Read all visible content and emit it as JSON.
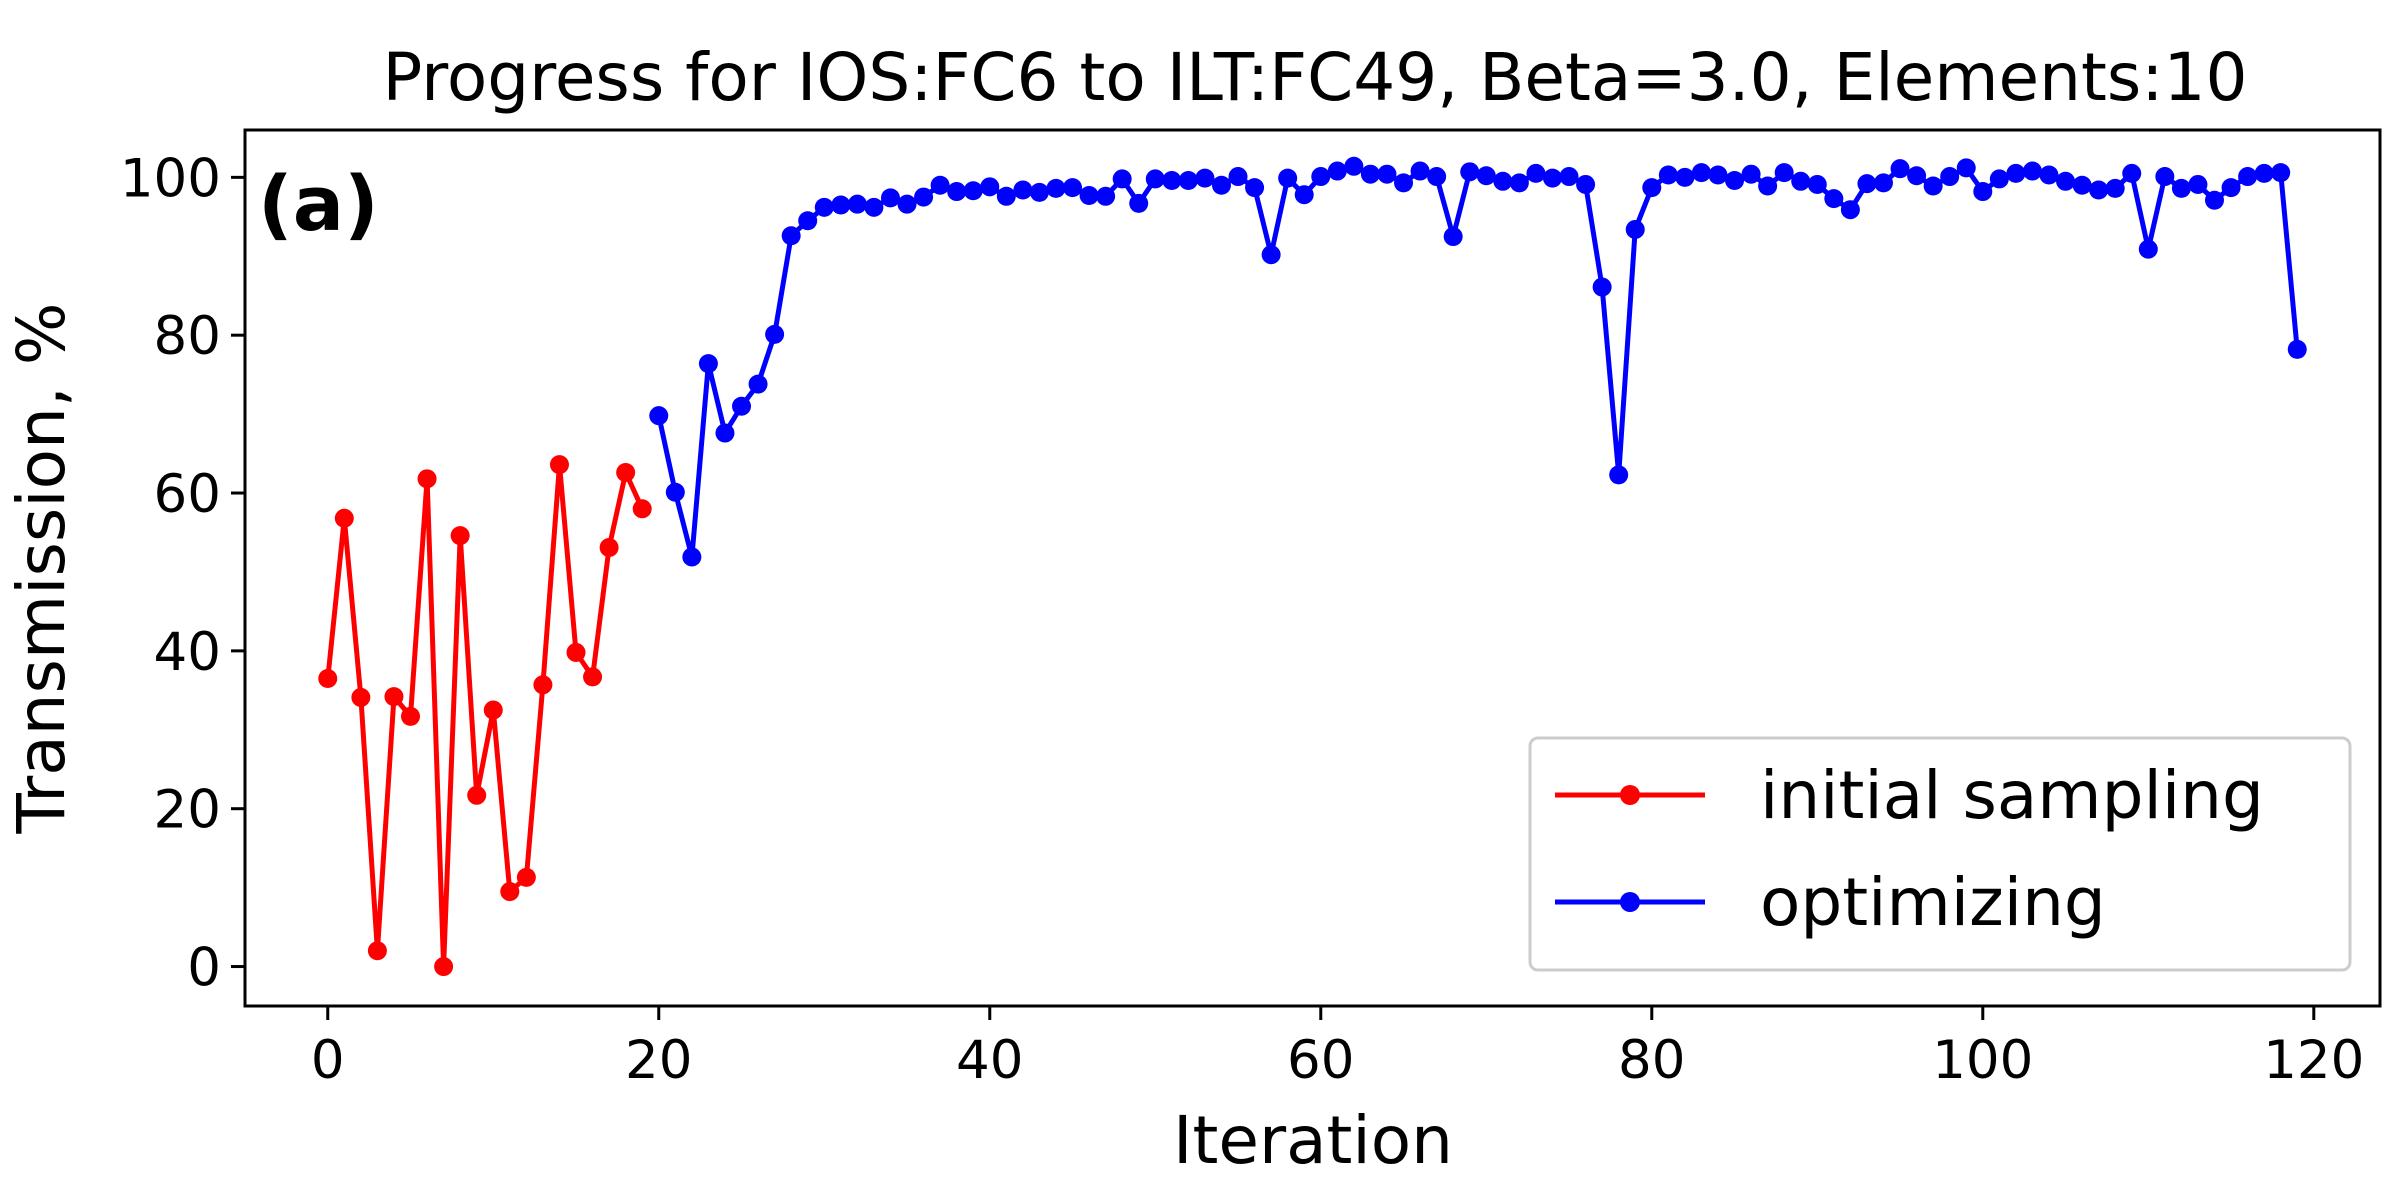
{
  "chart_data": {
    "type": "line",
    "title": "Progress for IOS:FC6 to ILT:FC49, Beta=3.0, Elements:10",
    "panel_label": "(a)",
    "xlabel": "Iteration",
    "ylabel": "Transmission, %",
    "xlim": [
      -5,
      124
    ],
    "ylim": [
      -5,
      106
    ],
    "xticks": [
      0,
      20,
      40,
      60,
      80,
      100,
      120
    ],
    "yticks": [
      0,
      20,
      40,
      60,
      80,
      100
    ],
    "grid": false,
    "legend_position": "lower-right",
    "series": [
      {
        "name": "initial sampling",
        "color": "#ff0000",
        "x": [
          0,
          1,
          2,
          3,
          4,
          5,
          6,
          7,
          8,
          9,
          10,
          11,
          12,
          13,
          14,
          15,
          16,
          17,
          18,
          19
        ],
        "y": [
          36.5,
          56.8,
          34.1,
          2.0,
          34.2,
          31.7,
          61.8,
          0.0,
          54.6,
          21.7,
          32.5,
          9.5,
          11.3,
          35.7,
          63.6,
          39.8,
          36.7,
          53.1,
          62.6,
          58.0
        ]
      },
      {
        "name": "optimizing",
        "color": "#0000ff",
        "x": [
          20,
          21,
          22,
          23,
          24,
          25,
          26,
          27,
          28,
          29,
          30,
          31,
          32,
          33,
          34,
          35,
          36,
          37,
          38,
          39,
          40,
          41,
          42,
          43,
          44,
          45,
          46,
          47,
          48,
          49,
          50,
          51,
          52,
          53,
          54,
          55,
          56,
          57,
          58,
          59,
          60,
          61,
          62,
          63,
          64,
          65,
          66,
          67,
          68,
          69,
          70,
          71,
          72,
          73,
          74,
          75,
          76,
          77,
          78,
          79,
          80,
          81,
          82,
          83,
          84,
          85,
          86,
          87,
          88,
          89,
          90,
          91,
          92,
          93,
          94,
          95,
          96,
          97,
          98,
          99,
          100,
          101,
          102,
          103,
          104,
          105,
          106,
          107,
          108,
          109,
          110,
          111,
          112,
          113,
          114,
          115,
          116,
          117,
          118,
          119
        ],
        "y": [
          69.8,
          60.1,
          51.9,
          76.4,
          67.6,
          71.0,
          73.8,
          80.1,
          92.6,
          94.5,
          96.2,
          96.5,
          96.6,
          96.2,
          97.4,
          96.6,
          97.5,
          99.0,
          98.2,
          98.3,
          98.8,
          97.6,
          98.4,
          98.1,
          98.6,
          98.7,
          97.7,
          97.6,
          99.8,
          96.7,
          99.8,
          99.6,
          99.6,
          99.9,
          99.0,
          100.1,
          98.7,
          90.2,
          99.9,
          97.8,
          100.1,
          100.8,
          101.4,
          100.4,
          100.4,
          99.3,
          100.8,
          100.1,
          92.5,
          100.7,
          100.2,
          99.5,
          99.3,
          100.5,
          99.9,
          100.1,
          99.1,
          86.1,
          62.3,
          93.4,
          98.7,
          100.3,
          100.0,
          100.6,
          100.3,
          99.6,
          100.4,
          98.9,
          100.6,
          99.5,
          99.1,
          97.3,
          95.9,
          99.2,
          99.3,
          101.1,
          100.2,
          98.9,
          100.1,
          101.2,
          98.2,
          99.8,
          100.5,
          100.8,
          100.3,
          99.5,
          99.0,
          98.4,
          98.6,
          100.5,
          90.9,
          100.1,
          98.6,
          99.1,
          97.1,
          98.7,
          100.1,
          100.5,
          100.6,
          78.2
        ]
      }
    ]
  }
}
